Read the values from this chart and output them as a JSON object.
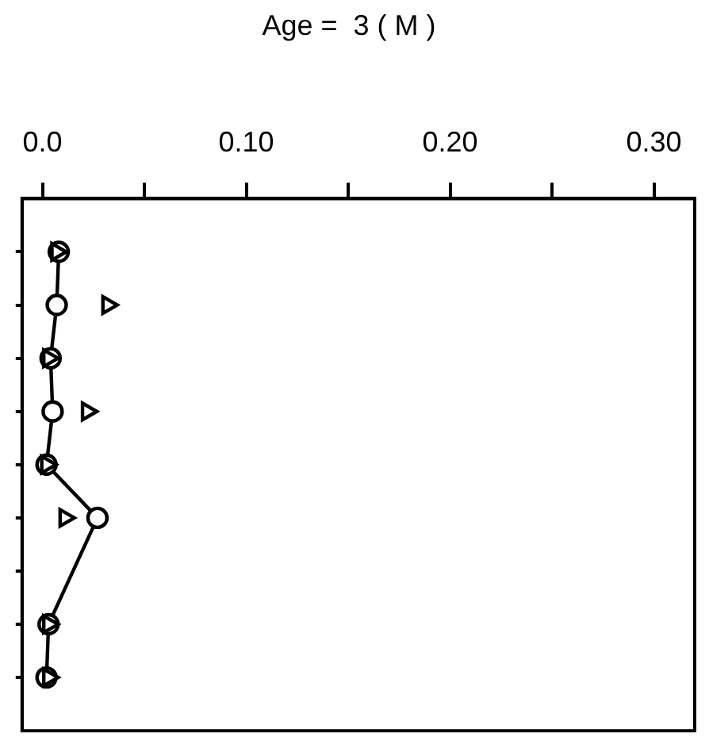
{
  "chart_data": {
    "type": "scatter",
    "title": "Age =  3 ( M )",
    "categories": [
      null,
      null,
      null,
      null,
      null,
      null,
      null,
      null,
      null
    ],
    "series": [
      {
        "type": "line",
        "marker": "circle",
        "line_style": "solid",
        "color": "#000000",
        "values": [
          0.008,
          0.007,
          0.004,
          0.005,
          0.002,
          0.027,
          null,
          0.003,
          0.002
        ]
      },
      {
        "type": "scatter",
        "marker": "triangle",
        "color": "#000000",
        "values": [
          0.007,
          0.032,
          0.003,
          0.022,
          0.002,
          0.011,
          null,
          0.003,
          0.003
        ]
      }
    ],
    "xlim": [
      -0.01,
      0.32
    ],
    "xticks": [
      {
        "value": 0,
        "label": "0.0"
      },
      {
        "value": 0.05,
        "label": null
      },
      {
        "value": 0.1,
        "label": "0.10"
      },
      {
        "value": 0.15,
        "label": null
      },
      {
        "value": 0.2,
        "label": "0.20"
      },
      {
        "value": 0.25,
        "label": null
      },
      {
        "value": 0.3,
        "label": "0.30"
      }
    ],
    "orientation": "horizontal",
    "tick_labels": "x",
    "legend": false
  }
}
